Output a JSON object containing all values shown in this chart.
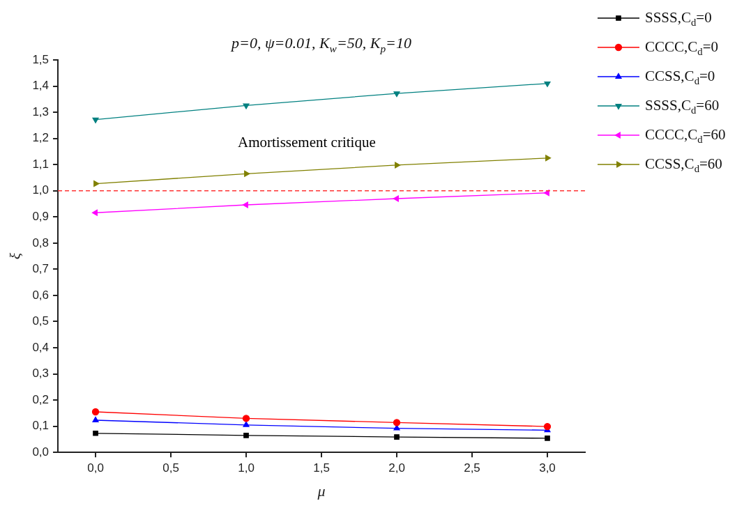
{
  "chart_data": {
    "type": "line",
    "title": "p=0, ψ=0.01, K$_{w}$=50, K$_{p}$=10",
    "xlabel": "μ",
    "ylabel": "ξ",
    "x": [
      0,
      1,
      2,
      3
    ],
    "xlim": [
      -0.25,
      3.25
    ],
    "xticks": [
      {
        "value": 0,
        "label": "0,0"
      },
      {
        "value": 0.5,
        "label": "0,5"
      },
      {
        "value": 1,
        "label": "1,0"
      },
      {
        "value": 1.5,
        "label": "1,5"
      },
      {
        "value": 2,
        "label": "2,0"
      },
      {
        "value": 2.5,
        "label": "2,5"
      },
      {
        "value": 3,
        "label": "3,0"
      }
    ],
    "ylim": [
      0,
      1.5
    ],
    "yticks": [
      {
        "value": 0,
        "label": "0,0"
      },
      {
        "value": 0.1,
        "label": "0,1"
      },
      {
        "value": 0.2,
        "label": "0,2"
      },
      {
        "value": 0.3,
        "label": "0,3"
      },
      {
        "value": 0.4,
        "label": "0,4"
      },
      {
        "value": 0.5,
        "label": "0,5"
      },
      {
        "value": 0.6,
        "label": "0,6"
      },
      {
        "value": 0.7,
        "label": "0,7"
      },
      {
        "value": 0.8,
        "label": "0,8"
      },
      {
        "value": 0.9,
        "label": "0,9"
      },
      {
        "value": 1,
        "label": "1,0"
      },
      {
        "value": 1.1,
        "label": "1,1"
      },
      {
        "value": 1.2,
        "label": "1,2"
      },
      {
        "value": 1.3,
        "label": "1,3"
      },
      {
        "value": 1.4,
        "label": "1,4"
      },
      {
        "value": 1.5,
        "label": "1,5"
      }
    ],
    "grid": false,
    "legend": "top right",
    "line_style": "solid",
    "series": [
      {
        "name": "SSSS,C$_{d}$=0",
        "color": "#000000",
        "marker": "square",
        "values": [
          0.073,
          0.065,
          0.059,
          0.054
        ]
      },
      {
        "name": "CCCC,C$_{d}$=0",
        "color": "#ff0000",
        "marker": "circle",
        "values": [
          0.155,
          0.13,
          0.114,
          0.099
        ]
      },
      {
        "name": "CCSS,C$_{d}$=0",
        "color": "#0000ff",
        "marker": "triangle",
        "values": [
          0.123,
          0.105,
          0.092,
          0.085
        ]
      },
      {
        "name": "SSSS,C$_{d}$=60",
        "color": "#008080",
        "marker": "triangle-down",
        "values": [
          1.272,
          1.326,
          1.372,
          1.41
        ]
      },
      {
        "name": "CCCC,C$_{d}$=60",
        "color": "#ff00ff",
        "marker": "triangle-left",
        "values": [
          0.916,
          0.946,
          0.97,
          0.992
        ]
      },
      {
        "name": "CCSS,C$_{d}$=60",
        "color": "#808000",
        "marker": "triangle-right",
        "values": [
          1.027,
          1.065,
          1.098,
          1.125
        ]
      }
    ],
    "ref_lines": [
      {
        "axis": "y",
        "value": 1,
        "label": "Amortissement critique",
        "color": "#ff3333",
        "line_style": "dashed"
      }
    ]
  }
}
